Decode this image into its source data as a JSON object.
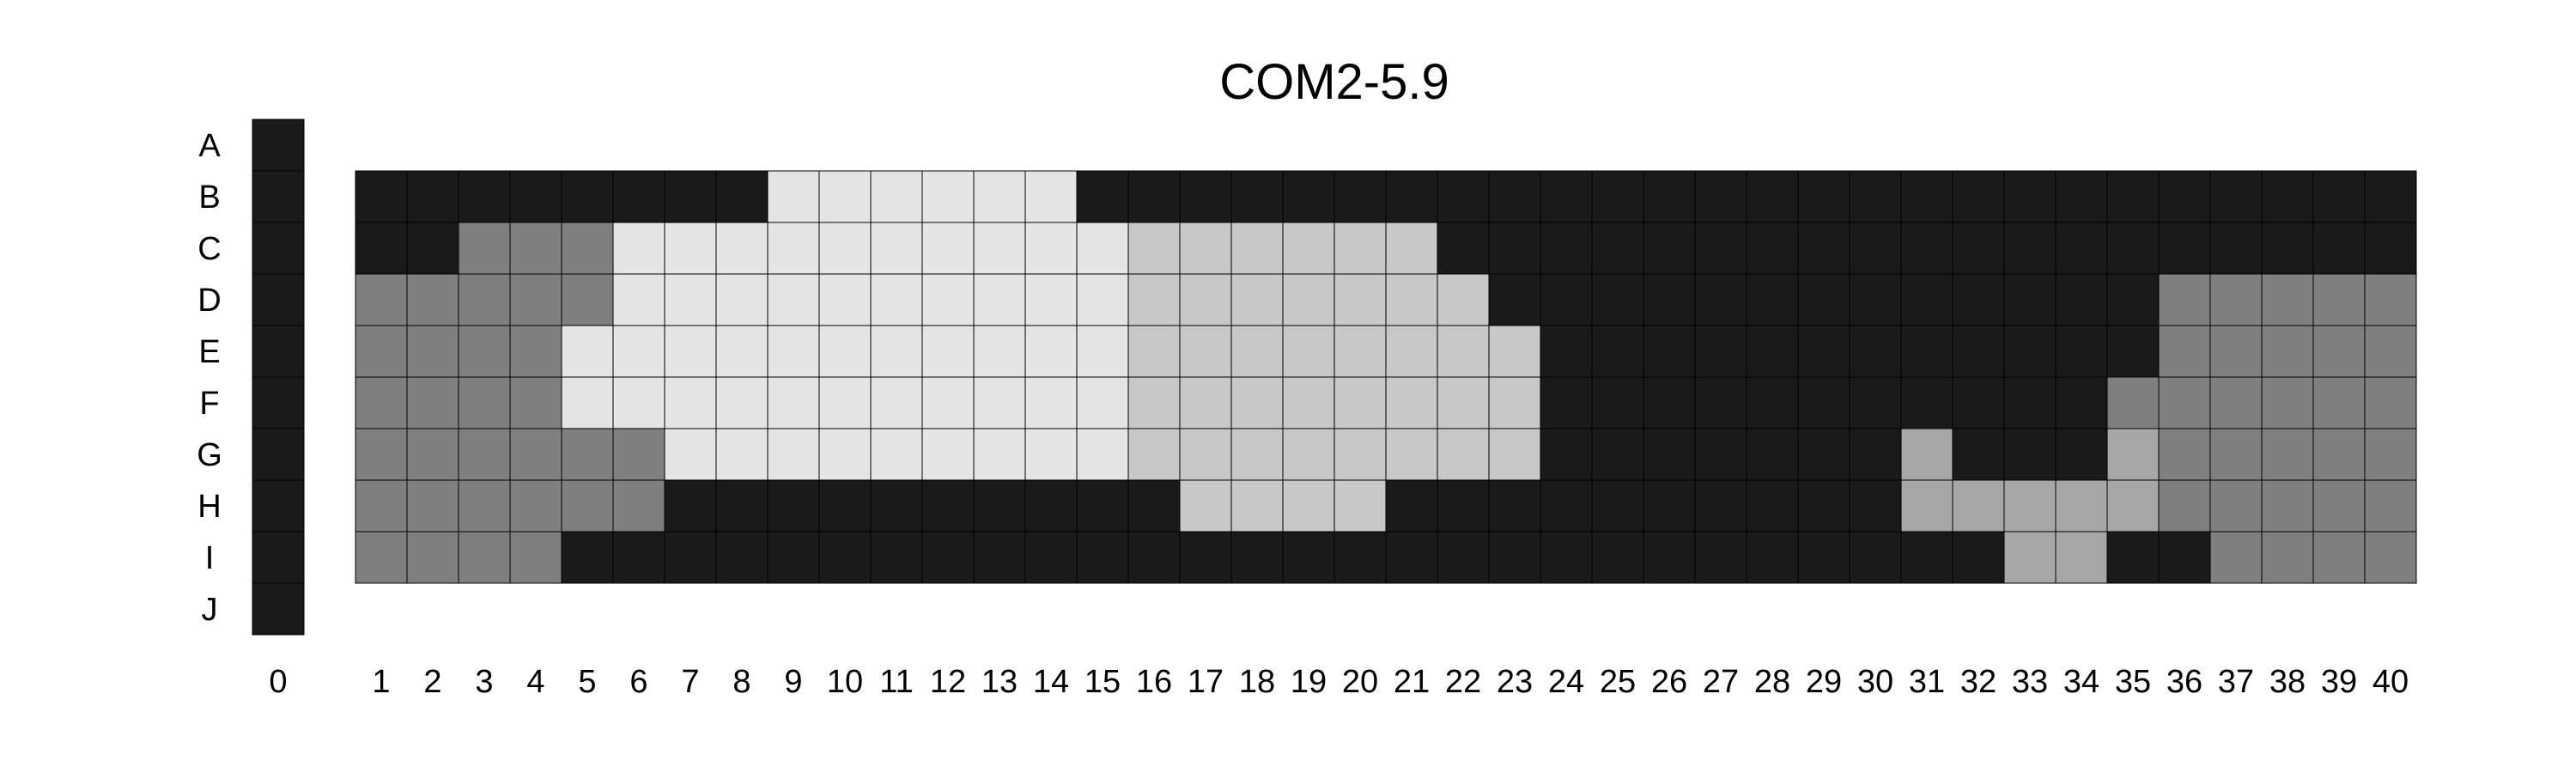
{
  "chart_data": {
    "type": "heatmap",
    "title": "COM2-5.9",
    "rows": [
      "A",
      "B",
      "C",
      "D",
      "E",
      "F",
      "G",
      "H",
      "I",
      "J"
    ],
    "columns": [
      "0",
      "1",
      "2",
      "3",
      "4",
      "5",
      "6",
      "7",
      "8",
      "9",
      "10",
      "11",
      "12",
      "13",
      "14",
      "15",
      "16",
      "17",
      "18",
      "19",
      "20",
      "21",
      "22",
      "23",
      "24",
      "25",
      "26",
      "27",
      "28",
      "29",
      "30",
      "31",
      "32",
      "33",
      "34",
      "35",
      "36",
      "37",
      "38",
      "39",
      "40"
    ],
    "colors": {
      "0": "#ffffff",
      "1": "#1a1a1a",
      "2": "#7f7f7f",
      "3": "#a6a6a6",
      "4": "#c8c8c8",
      "5": "#e5e5e5"
    },
    "column0_rows": [
      "A",
      "B",
      "C",
      "D",
      "E",
      "F",
      "G",
      "H",
      "I",
      "J"
    ],
    "grid_rows": [
      "B",
      "C",
      "D",
      "E",
      "F",
      "G",
      "H",
      "I"
    ],
    "cells": {
      "B": "1111111155555511111111111111111111111111",
      "C": "1122255555555554444441111111111111111111",
      "D": "2222255555555554444444111111111111122222",
      "E": "2222555555555554444444411111111111122222",
      "F": "2222555555555554444444411111111111222222",
      "G": "2222225555555554444444411111113111322222",
      "H": "2222221111111111444411111111113333322222",
      "I": "2222111111111111111111111111111133112222"
    }
  }
}
